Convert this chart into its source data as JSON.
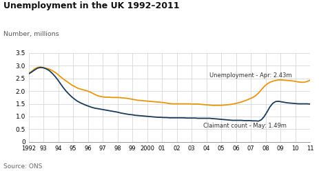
{
  "title": "Unemployment in the UK 1992–2011",
  "ylabel": "Number, millions",
  "source": "Source: ONS",
  "ylim": [
    0,
    3.5
  ],
  "background_color": "#ffffff",
  "grid_color": "#d0d0d0",
  "unemployment_color": "#e8960c",
  "claimant_color": "#1a3a5c",
  "unemployment_label": "Unemployment - Apr: 2.43m",
  "claimant_label": "Claimant count - May: 1.49m",
  "xtick_labels": [
    "1992",
    "93",
    "94",
    "95",
    "96",
    "97",
    "98",
    "99",
    "2000",
    "01",
    "02",
    "03",
    "04",
    "05",
    "06",
    "07",
    "08",
    "09",
    "10",
    "11"
  ],
  "ytick_labels": [
    "0",
    "0.5",
    "1.0",
    "1.5",
    "2.0",
    "2.5",
    "3.0",
    "3.5"
  ],
  "ytick_values": [
    0,
    0.5,
    1.0,
    1.5,
    2.0,
    2.5,
    3.0,
    3.5
  ],
  "unemployment_data": [
    2.7,
    2.78,
    2.87,
    2.93,
    2.95,
    2.93,
    2.9,
    2.87,
    2.82,
    2.75,
    2.67,
    2.57,
    2.48,
    2.4,
    2.32,
    2.24,
    2.18,
    2.12,
    2.08,
    2.05,
    2.02,
    1.98,
    1.93,
    1.87,
    1.82,
    1.79,
    1.77,
    1.76,
    1.76,
    1.75,
    1.75,
    1.75,
    1.74,
    1.73,
    1.72,
    1.7,
    1.68,
    1.66,
    1.64,
    1.63,
    1.62,
    1.61,
    1.6,
    1.59,
    1.58,
    1.57,
    1.56,
    1.55,
    1.53,
    1.51,
    1.5,
    1.5,
    1.5,
    1.5,
    1.5,
    1.5,
    1.5,
    1.49,
    1.49,
    1.49,
    1.48,
    1.47,
    1.46,
    1.45,
    1.44,
    1.44,
    1.44,
    1.44,
    1.45,
    1.46,
    1.47,
    1.49,
    1.51,
    1.54,
    1.57,
    1.61,
    1.65,
    1.7,
    1.75,
    1.82,
    1.92,
    2.05,
    2.18,
    2.28,
    2.35,
    2.39,
    2.42,
    2.44,
    2.44,
    2.43,
    2.42,
    2.41,
    2.4,
    2.38,
    2.36,
    2.35,
    2.35,
    2.38,
    2.43
  ],
  "claimant_data": [
    2.68,
    2.75,
    2.83,
    2.9,
    2.93,
    2.92,
    2.88,
    2.82,
    2.72,
    2.6,
    2.46,
    2.3,
    2.14,
    2.0,
    1.88,
    1.77,
    1.68,
    1.6,
    1.54,
    1.49,
    1.44,
    1.4,
    1.36,
    1.33,
    1.31,
    1.29,
    1.27,
    1.25,
    1.23,
    1.21,
    1.19,
    1.17,
    1.14,
    1.12,
    1.1,
    1.08,
    1.07,
    1.05,
    1.04,
    1.03,
    1.02,
    1.01,
    1.0,
    0.99,
    0.98,
    0.97,
    0.97,
    0.96,
    0.96,
    0.95,
    0.95,
    0.95,
    0.95,
    0.95,
    0.95,
    0.94,
    0.94,
    0.94,
    0.94,
    0.93,
    0.93,
    0.93,
    0.93,
    0.93,
    0.92,
    0.91,
    0.9,
    0.89,
    0.88,
    0.87,
    0.86,
    0.85,
    0.85,
    0.85,
    0.85,
    0.84,
    0.84,
    0.84,
    0.83,
    0.83,
    0.82,
    0.87,
    1.0,
    1.18,
    1.38,
    1.52,
    1.59,
    1.6,
    1.58,
    1.56,
    1.54,
    1.53,
    1.52,
    1.51,
    1.5,
    1.5,
    1.5,
    1.5,
    1.49
  ]
}
